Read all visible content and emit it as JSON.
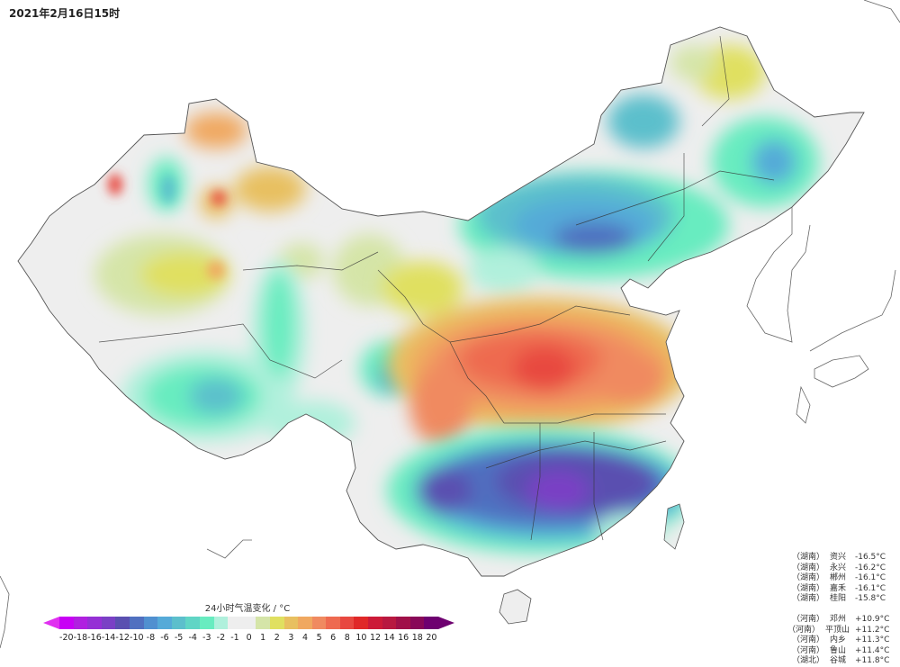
{
  "title": "2021年2月16日15时",
  "colorbar": {
    "title": "24小时气温变化 / °C",
    "under_color": "#e030f0",
    "over_color": "#6e0070",
    "colors": [
      "#c800f5",
      "#b020e0",
      "#9530d5",
      "#7a40c5",
      "#5a50b0",
      "#5070c0",
      "#5090d0",
      "#55aad8",
      "#5cbfcc",
      "#60d5c5",
      "#68ecc0",
      "#b0f0dc",
      "#eeeeee",
      "#eeeeee",
      "#d5e5a8",
      "#e0e060",
      "#e8c060",
      "#f0a860",
      "#f08a60",
      "#ee6a50",
      "#e84840",
      "#e02828",
      "#cc1a38",
      "#b81840",
      "#a01048",
      "#880858",
      "#6e0070"
    ],
    "tick_labels": [
      "-20",
      "-18",
      "-16",
      "-14",
      "-12",
      "-10",
      "-8",
      "-6",
      "-5",
      "-4",
      "-3",
      "-2",
      "-1",
      "0",
      "1",
      "2",
      "3",
      "4",
      "5",
      "6",
      "8",
      "10",
      "12",
      "14",
      "16",
      "18",
      "20"
    ]
  },
  "stations": {
    "coldest": [
      {
        "province": "（湖南）",
        "name": "资兴",
        "value": "-16.5°C"
      },
      {
        "province": "（湖南）",
        "name": "永兴",
        "value": "-16.2°C"
      },
      {
        "province": "（湖南）",
        "name": "郴州",
        "value": "-16.1°C"
      },
      {
        "province": "（湖南）",
        "name": "嘉禾",
        "value": "-16.1°C"
      },
      {
        "province": "（湖南）",
        "name": "桂阳",
        "value": "-15.8°C"
      }
    ],
    "warmest": [
      {
        "province": "（河南）",
        "name": "邓州",
        "value": "+10.9°C"
      },
      {
        "province": "（河南）",
        "name": "平顶山",
        "value": "+11.2°C"
      },
      {
        "province": "（河南）",
        "name": "内乡",
        "value": "+11.3°C"
      },
      {
        "province": "（河南）",
        "name": "鲁山",
        "value": "+11.4°C"
      },
      {
        "province": "（湖北）",
        "name": "谷城",
        "value": "+11.8°C"
      }
    ]
  },
  "map": {
    "region": "China",
    "variable": "24-hour temperature change",
    "unit": "°C",
    "features": [
      {
        "label": "strong warming, Henan/Hubei/Anhui/Jiangsu",
        "range": "+6 to +12"
      },
      {
        "label": "strong cooling, Hunan/Jiangxi/Guangxi/Fujian",
        "range": "-8 to -16"
      },
      {
        "label": "cooling, Inner Mongolia/Hebei/Shanxi",
        "range": "-4 to -10"
      },
      {
        "label": "slight warming, Xinjiang/Heilongjiang north",
        "range": "+1 to +5"
      }
    ]
  }
}
